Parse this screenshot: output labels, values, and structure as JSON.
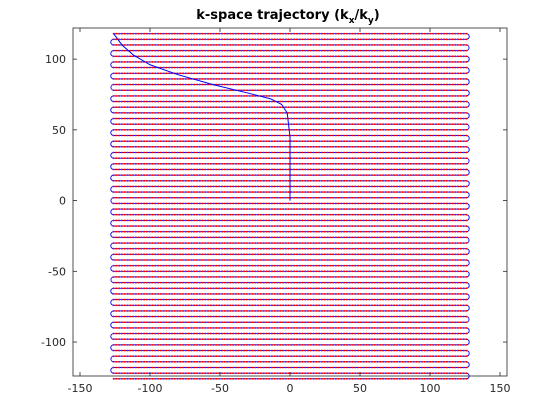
{
  "chart_data": {
    "type": "line",
    "title": "k-space trajectory (k",
    "title_sub_x": "x",
    "title_sep": "/k",
    "title_sub_y": "y",
    "title_close": ")",
    "xlabel": "",
    "ylabel": "",
    "xlim": [
      -155,
      155
    ],
    "ylim": [
      -124,
      122
    ],
    "xticks": [
      -150,
      -100,
      -50,
      0,
      50,
      100,
      150
    ],
    "yticks": [
      -100,
      -50,
      0,
      50,
      100
    ],
    "grid": false,
    "raster": {
      "kx_range": [
        -126,
        126
      ],
      "ky_start": 118,
      "ky_step": -4,
      "n_lines": 62,
      "samples_per_line": 128,
      "line_color": "#0000ff",
      "sample_color": "#ff0000"
    },
    "prephase": {
      "color": "#0000ff",
      "x": [
        0,
        0,
        0,
        -2,
        -6,
        -14,
        -30,
        -55,
        -80,
        -100,
        -112,
        -120,
        -126
      ],
      "y": [
        0,
        20,
        45,
        62,
        68,
        72,
        76,
        82,
        89,
        96,
        103,
        110,
        118
      ]
    }
  }
}
